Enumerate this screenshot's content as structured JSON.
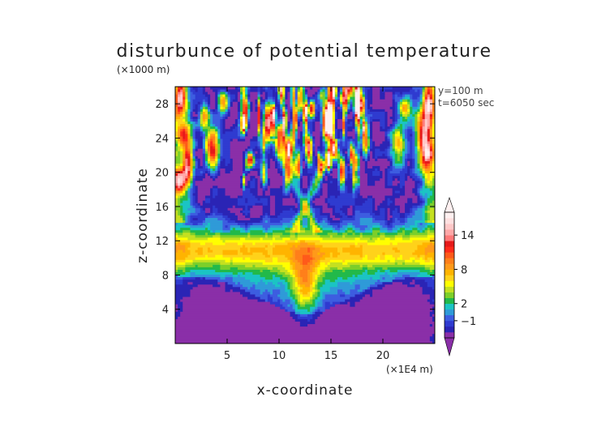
{
  "chart_data": {
    "type": "heatmap",
    "title": "disturbunce of potential temperature",
    "xlabel": "x-coordinate",
    "ylabel": "z-coordinate",
    "x_unit": "(×1E4 m)",
    "y_unit": "(×1000 m)",
    "xlim": [
      0,
      25
    ],
    "ylim": [
      0,
      30
    ],
    "x_ticks": [
      5,
      10,
      15,
      20
    ],
    "y_ticks": [
      4,
      8,
      12,
      16,
      20,
      24,
      28
    ],
    "annotations": [
      "y=100 m",
      "t=6050 sec"
    ],
    "colorbar": {
      "tick_labels": [
        "14",
        "8",
        "2",
        "−1"
      ],
      "tick_values": [
        14,
        8,
        2,
        -1
      ],
      "range": [
        -4,
        18
      ],
      "levels": [
        -4,
        -3,
        -2,
        -1,
        0,
        1,
        2,
        3,
        4,
        5,
        6,
        7,
        8,
        9,
        10,
        11,
        12,
        13,
        14,
        15,
        16,
        17,
        18
      ],
      "colors": [
        "#8a2fa8",
        "#2a24b5",
        "#2f3bd0",
        "#3d5de0",
        "#2f9ad8",
        "#1bc4c4",
        "#22b94a",
        "#7ccf2a",
        "#c4e020",
        "#ffff00",
        "#ffd21a",
        "#ffb400",
        "#ff9a1a",
        "#ff7f1a",
        "#ff5a1a",
        "#ff2a1a",
        "#e61a1a",
        "#ff7a7a",
        "#ffa8a8",
        "#ffc8c8",
        "#ffe0e0",
        "#fff0f0"
      ],
      "extends": "both"
    }
  }
}
